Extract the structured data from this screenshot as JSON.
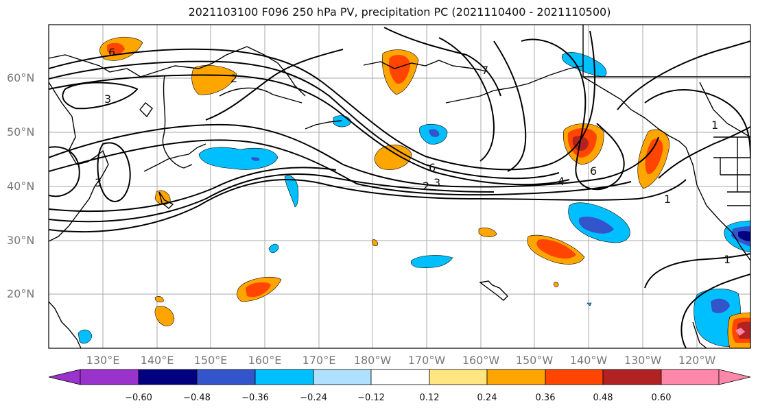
{
  "title": "2021103100 F096 250 hPa PV, precipitation PC (2021110400 - 2021110500)",
  "map": {
    "lat_labels": [
      "60°N",
      "50°N",
      "40°N",
      "30°N",
      "20°N"
    ],
    "lon_labels": [
      "130°E",
      "140°E",
      "150°E",
      "160°E",
      "170°E",
      "180°W",
      "170°W",
      "160°W",
      "150°W",
      "140°W",
      "130°W",
      "120°W"
    ],
    "contour_labels": [
      "6",
      "3",
      "6",
      "2",
      "3",
      "4",
      "6",
      "1",
      "1",
      "7",
      "3",
      "2",
      "1"
    ]
  },
  "colorbar": {
    "colors": [
      "#9933cc",
      "#000080",
      "#3355cc",
      "#00bfff",
      "#b0e0ff",
      "#ffffff",
      "#ffe680",
      "#ffa500",
      "#ff4500",
      "#b22222",
      "#ff88aa"
    ],
    "ticks": [
      "−0.60",
      "−0.48",
      "−0.36",
      "−0.24",
      "−0.12",
      "0.12",
      "0.24",
      "0.36",
      "0.48",
      "0.60"
    ]
  }
}
